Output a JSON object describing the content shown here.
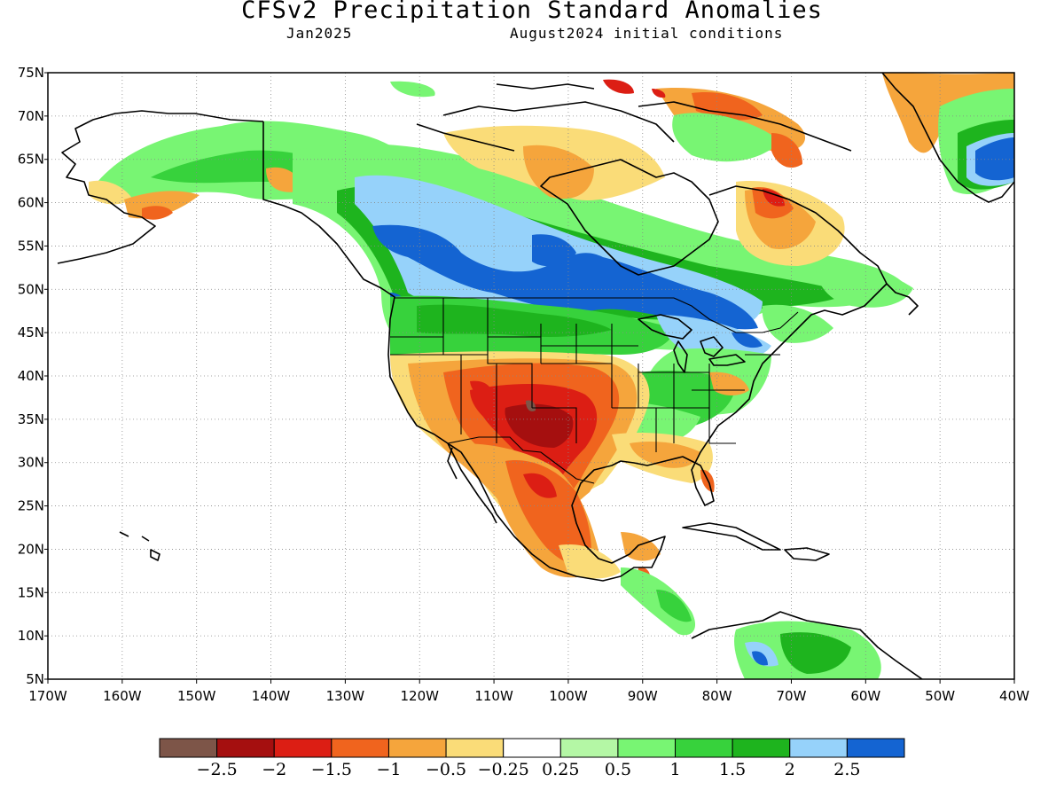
{
  "title": "CFSv2 Precipitation Standard Anomalies",
  "subtitle_left": "Jan2025",
  "subtitle_right": "August2024 initial conditions",
  "map": {
    "lon_range": [
      -170,
      -40
    ],
    "lat_range": [
      5,
      75
    ],
    "lat_labels": [
      "75N",
      "70N",
      "65N",
      "60N",
      "55N",
      "50N",
      "45N",
      "40N",
      "35N",
      "30N",
      "25N",
      "20N",
      "15N",
      "10N",
      "5N"
    ],
    "lon_labels": [
      "170W",
      "160W",
      "150W",
      "140W",
      "130W",
      "120W",
      "110W",
      "100W",
      "90W",
      "80W",
      "70W",
      "60W",
      "50W",
      "40W"
    ],
    "grid": "dotted"
  },
  "colorbar": {
    "colors": [
      "#7d5548",
      "#a50f0f",
      "#dc1e14",
      "#f0641e",
      "#f5a53c",
      "#fadc78",
      "#ffffff",
      "#b4f7a5",
      "#78f573",
      "#37d23c",
      "#1eb41e",
      "#96d2fa",
      "#1464d2"
    ],
    "labels": [
      "−2.5",
      "−2",
      "−1.5",
      "−1",
      "−0.5",
      "−0.25",
      "0.25",
      "0.5",
      "1",
      "1.5",
      "2",
      "2.5"
    ]
  }
}
